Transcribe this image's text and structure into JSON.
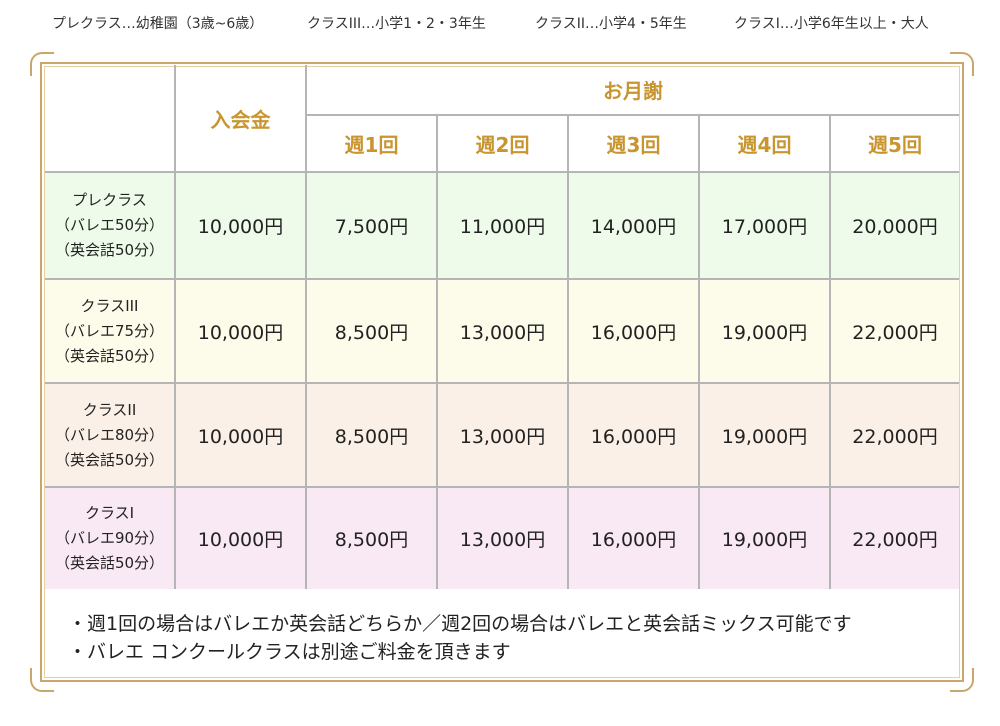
{
  "legend": [
    "プレクラス…幼稚園（3歳~6歳）",
    "クラスIII…小学1・2・3年生",
    "クラスII…小学4・5年生",
    "クラスI…小学6年生以上・大人"
  ],
  "table": {
    "header": {
      "enrollment": "入会金",
      "monthly": "お月謝",
      "weeks": [
        "週1回",
        "週2回",
        "週3回",
        "週4回",
        "週5回"
      ]
    },
    "rows": [
      {
        "label": [
          "プレクラス",
          "（バレエ50分）",
          "（英会話50分）"
        ],
        "enrollment": "10,000円",
        "prices": [
          "7,500円",
          "11,000円",
          "14,000円",
          "17,000円",
          "20,000円"
        ],
        "color": "#eefbea"
      },
      {
        "label": [
          "クラスIII",
          "（バレエ75分）",
          "（英会話50分）"
        ],
        "enrollment": "10,000円",
        "prices": [
          "8,500円",
          "13,000円",
          "16,000円",
          "19,000円",
          "22,000円"
        ],
        "color": "#fdfcea"
      },
      {
        "label": [
          "クラスII",
          "（バレエ80分）",
          "（英会話50分）"
        ],
        "enrollment": "10,000円",
        "prices": [
          "8,500円",
          "13,000円",
          "16,000円",
          "19,000円",
          "22,000円"
        ],
        "color": "#faf0e8"
      },
      {
        "label": [
          "クラスI",
          "（バレエ90分）",
          "（英会話50分）"
        ],
        "enrollment": "10,000円",
        "prices": [
          "8,500円",
          "13,000円",
          "16,000円",
          "19,000円",
          "22,000円"
        ],
        "color": "#f9e9f5"
      }
    ]
  },
  "notes": [
    "・週1回の場合はバレエか英会話どちらか／週2回の場合はバレエと英会話ミックス可能です",
    "・バレエ コンクールクラスは別途ご料金を頂きます"
  ],
  "colors": {
    "accent": "#c8952f",
    "frame": "#c9a76a",
    "grid": "#b5b5b5"
  }
}
